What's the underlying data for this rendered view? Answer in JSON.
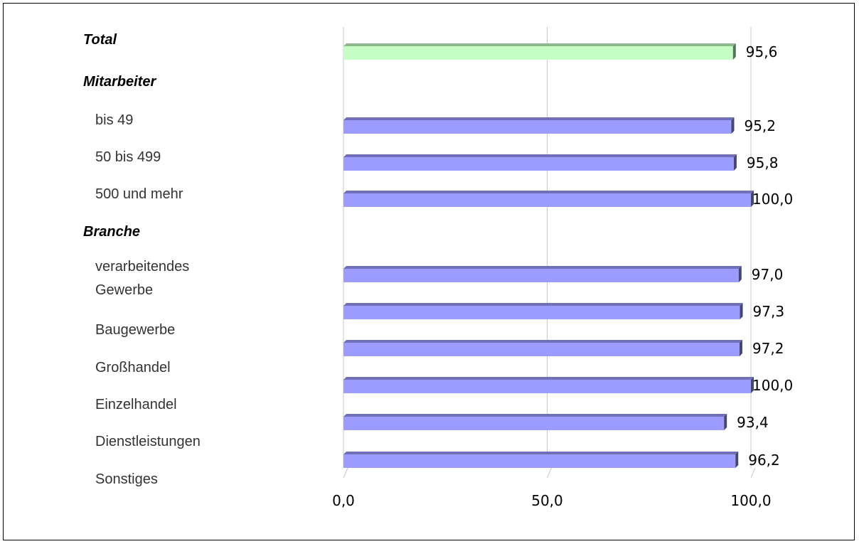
{
  "chart_data": {
    "type": "bar",
    "orientation": "horizontal",
    "title": "",
    "xlabel": "",
    "ylabel": "",
    "xlim": [
      0,
      100
    ],
    "ticks": [
      "0,0",
      "50,0",
      "100,0"
    ],
    "tick_values": [
      0,
      50,
      100
    ],
    "grid": true,
    "rows": [
      {
        "label": "Total",
        "kind": "header",
        "has_bar": true,
        "value": 95.6,
        "value_label": "95,6",
        "color": "#c6ffc6"
      },
      {
        "label": "Mitarbeiter",
        "kind": "header",
        "has_bar": false
      },
      {
        "label": "bis 49",
        "kind": "item",
        "has_bar": true,
        "value": 95.2,
        "value_label": "95,2",
        "color": "#9c9cff"
      },
      {
        "label": "50 bis 499",
        "kind": "item",
        "has_bar": true,
        "value": 95.8,
        "value_label": "95,8",
        "color": "#9c9cff"
      },
      {
        "label": "500 und mehr",
        "kind": "item",
        "has_bar": true,
        "value": 100.0,
        "value_label": "100,0",
        "color": "#9c9cff"
      },
      {
        "label": "Branche",
        "kind": "header",
        "has_bar": false
      },
      {
        "label": [
          "verarbeitendes",
          "Gewerbe"
        ],
        "kind": "item",
        "has_bar": true,
        "value": 97.0,
        "value_label": "97,0",
        "color": "#9c9cff"
      },
      {
        "label": "Baugewerbe",
        "kind": "item",
        "has_bar": true,
        "value": 97.3,
        "value_label": "97,3",
        "color": "#9c9cff"
      },
      {
        "label": "Großhandel",
        "kind": "item",
        "has_bar": true,
        "value": 97.2,
        "value_label": "97,2",
        "color": "#9c9cff"
      },
      {
        "label": "Einzelhandel",
        "kind": "item",
        "has_bar": true,
        "value": 100.0,
        "value_label": "100,0",
        "color": "#9c9cff"
      },
      {
        "label": "Dienstleistungen",
        "kind": "item",
        "has_bar": true,
        "value": 93.4,
        "value_label": "93,4",
        "color": "#9c9cff"
      },
      {
        "label": "Sonstiges",
        "kind": "item",
        "has_bar": true,
        "value": 96.2,
        "value_label": "96,2",
        "color": "#9c9cff"
      }
    ]
  }
}
